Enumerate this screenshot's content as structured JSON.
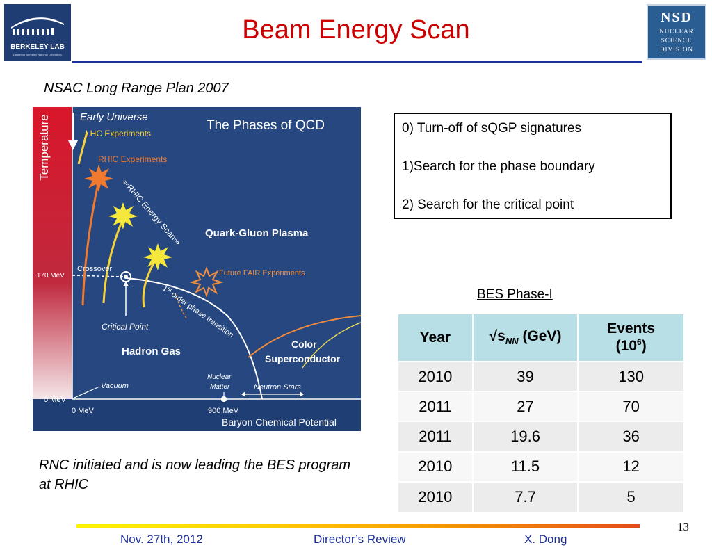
{
  "header": {
    "title": "Beam Energy Scan",
    "berkeley_logo": {
      "name": "BERKELEY LAB",
      "subtitle": "Lawrence Berkeley National Laboratory"
    },
    "nsd_logo": {
      "abbr": "NSD",
      "line1": "NUCLEAR",
      "line2": "SCIENCE",
      "line3": "DIVISION"
    }
  },
  "subtitle": "NSAC Long Range Plan 2007",
  "diagram": {
    "title": "The Phases of QCD",
    "y_axis": "Temperature",
    "x_axis": "Baryon Chemical Potential",
    "labels": {
      "early_universe": "Early Universe",
      "lhc": "LHC Experiments",
      "rhic": "RHIC Experiments",
      "rhic_scan": "⇐RHIC Energy Scan⇒",
      "qgp": "Quark-Gluon Plasma",
      "crossover": "Crossover",
      "mev170": "~170 MeV",
      "fair": "Future FAIR Experiments",
      "first_order_1": "1",
      "first_order_st": "st",
      "first_order_2": " order phase transition",
      "critical_point": "Critical Point",
      "hadron_gas": "Hadron Gas",
      "color_1": "Color",
      "color_2": "Superconductor",
      "vacuum": "Vacuum",
      "nuclear_1": "Nuclear",
      "nuclear_2": "Matter",
      "neutron_stars": "Neutron Stars",
      "zero_mev_y": "0 MeV",
      "zero_mev_x": "0 MeV",
      "mev900": "900 MeV"
    }
  },
  "goals": [
    "0) Turn-off of sQGP signatures",
    "1)Search for the phase boundary",
    "2) Search for the critical point"
  ],
  "bes": {
    "label": "BES Phase-I",
    "headers": {
      "year": "Year",
      "sqrt_prefix": "√s",
      "sqrt_sub": "NN",
      "sqrt_suffix": " (GeV)",
      "events_1": "Events",
      "events_2a": "(10",
      "events_sup": "6",
      "events_2b": ")"
    },
    "rows": [
      {
        "year": "2010",
        "energy": "39",
        "events": "130"
      },
      {
        "year": "2011",
        "energy": "27",
        "events": "70"
      },
      {
        "year": "2011",
        "energy": "19.6",
        "events": "36"
      },
      {
        "year": "2010",
        "energy": "11.5",
        "events": "12"
      },
      {
        "year": "2010",
        "energy": "7.7",
        "events": "5"
      }
    ]
  },
  "note": "RNC initiated and is now leading the BES program at RHIC",
  "footer": {
    "date": "Nov. 27th, 2012",
    "event": "Director’s Review",
    "author": "X. Dong",
    "page": "13"
  }
}
